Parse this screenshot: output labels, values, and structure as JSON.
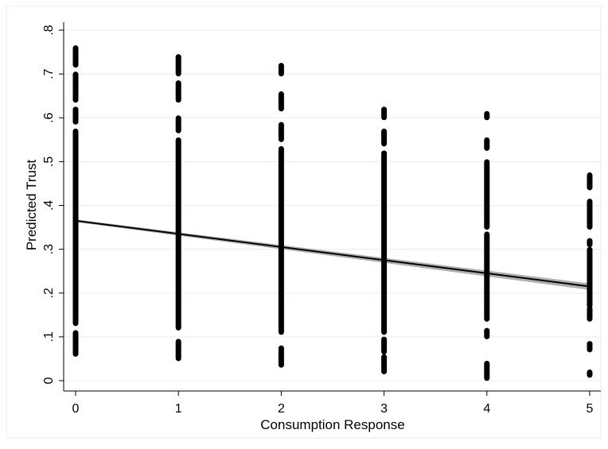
{
  "chart_data": {
    "type": "scatter",
    "xlabel": "Consumption Response",
    "ylabel": "Predicted Trust",
    "x_ticks": [
      {
        "value": 0,
        "label": "0"
      },
      {
        "value": 1,
        "label": "1"
      },
      {
        "value": 2,
        "label": "2"
      },
      {
        "value": 3,
        "label": "3"
      },
      {
        "value": 4,
        "label": "4"
      },
      {
        "value": 5,
        "label": "5"
      }
    ],
    "y_ticks": [
      {
        "value": 0,
        "label": "0"
      },
      {
        "value": 0.1,
        "label": ".1"
      },
      {
        "value": 0.2,
        "label": ".2"
      },
      {
        "value": 0.3,
        "label": ".3"
      },
      {
        "value": 0.4,
        "label": ".4"
      },
      {
        "value": 0.5,
        "label": ".5"
      },
      {
        "value": 0.6,
        "label": ".6"
      },
      {
        "value": 0.7,
        "label": ".7"
      },
      {
        "value": 0.8,
        "label": ".8"
      }
    ],
    "xlim": [
      -0.1,
      5.1
    ],
    "ylim": [
      -0.01,
      0.82
    ],
    "grid": true,
    "legend": "none",
    "colors": {
      "points": "#000000",
      "fit_line": "#000000",
      "ci_band": "#b0b0b0",
      "grid": "#eaf2f3",
      "background": "#ffffff"
    },
    "point_columns": [
      {
        "x": 0,
        "segments": [
          [
            0.06,
            0.11
          ],
          [
            0.13,
            0.57
          ],
          [
            0.59,
            0.62
          ],
          [
            0.64,
            0.7
          ],
          [
            0.72,
            0.76
          ]
        ]
      },
      {
        "x": 1,
        "segments": [
          [
            0.05,
            0.09
          ],
          [
            0.12,
            0.55
          ],
          [
            0.57,
            0.6
          ],
          [
            0.64,
            0.68
          ],
          [
            0.7,
            0.74
          ]
        ]
      },
      {
        "x": 2,
        "segments": [
          [
            0.035,
            0.075
          ],
          [
            0.11,
            0.53
          ],
          [
            0.55,
            0.585
          ],
          [
            0.62,
            0.655
          ],
          [
            0.7,
            0.72
          ]
        ]
      },
      {
        "x": 3,
        "segments": [
          [
            0.02,
            0.055
          ],
          [
            0.065,
            0.095
          ],
          [
            0.11,
            0.52
          ],
          [
            0.54,
            0.57
          ],
          [
            0.6,
            0.62
          ]
        ]
      },
      {
        "x": 4,
        "segments": [
          [
            0.005,
            0.04
          ],
          [
            0.1,
            0.115
          ],
          [
            0.14,
            0.335
          ],
          [
            0.35,
            0.5
          ],
          [
            0.53,
            0.55
          ],
          [
            0.6,
            0.61
          ]
        ]
      },
      {
        "x": 5,
        "segments": [
          [
            0.012,
            0.02
          ],
          [
            0.07,
            0.085
          ],
          [
            0.14,
            0.165
          ],
          [
            0.17,
            0.3
          ],
          [
            0.31,
            0.32
          ],
          [
            0.35,
            0.41
          ],
          [
            0.44,
            0.47
          ]
        ]
      }
    ],
    "fit_line": {
      "x": [
        0,
        5
      ],
      "y": [
        0.365,
        0.215
      ]
    },
    "ci_band": {
      "x": [
        0,
        5
      ],
      "lower": [
        0.362,
        0.207
      ],
      "upper": [
        0.368,
        0.222
      ]
    }
  }
}
